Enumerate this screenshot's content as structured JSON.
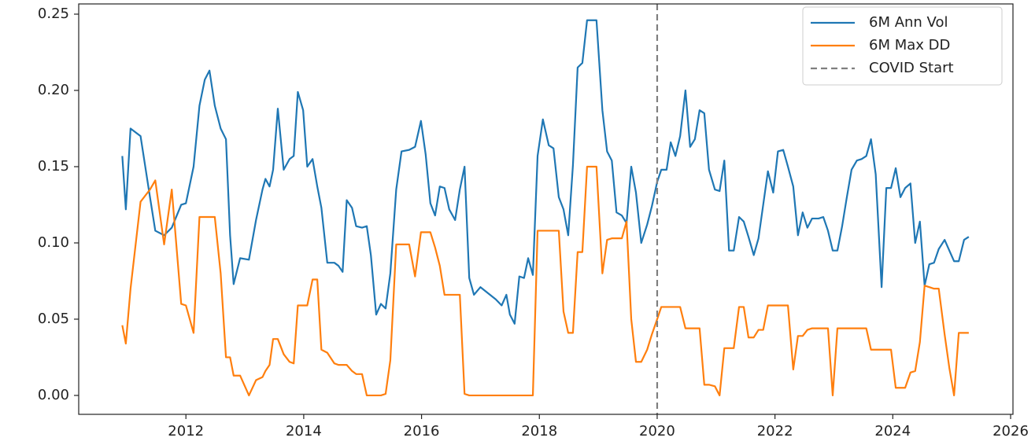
{
  "chart_data": {
    "type": "line",
    "x": [
      2010.92,
      2010.98,
      2011.06,
      2011.23,
      2011.39,
      2011.48,
      2011.63,
      2011.76,
      2011.92,
      2012.0,
      2012.13,
      2012.23,
      2012.32,
      2012.4,
      2012.49,
      2012.59,
      2012.68,
      2012.75,
      2012.81,
      2012.92,
      2013.07,
      2013.19,
      2013.3,
      2013.35,
      2013.42,
      2013.48,
      2013.56,
      2013.66,
      2013.76,
      2013.83,
      2013.9,
      2013.99,
      2014.06,
      2014.15,
      2014.23,
      2014.3,
      2014.4,
      2014.52,
      2014.59,
      2014.66,
      2014.73,
      2014.82,
      2014.89,
      2014.99,
      2015.07,
      2015.14,
      2015.23,
      2015.31,
      2015.39,
      2015.47,
      2015.57,
      2015.66,
      2015.79,
      2015.89,
      2015.99,
      2016.07,
      2016.15,
      2016.23,
      2016.31,
      2016.39,
      2016.47,
      2016.57,
      2016.65,
      2016.73,
      2016.81,
      2016.89,
      2017.0,
      2017.13,
      2017.26,
      2017.36,
      2017.44,
      2017.5,
      2017.58,
      2017.66,
      2017.74,
      2017.81,
      2017.89,
      2017.97,
      2018.06,
      2018.16,
      2018.24,
      2018.33,
      2018.41,
      2018.49,
      2018.57,
      2018.65,
      2018.73,
      2018.81,
      2018.89,
      2018.97,
      2019.07,
      2019.15,
      2019.23,
      2019.31,
      2019.4,
      2019.48,
      2019.56,
      2019.64,
      2019.73,
      2019.83,
      2019.91,
      2020.0,
      2020.07,
      2020.16,
      2020.23,
      2020.31,
      2020.39,
      2020.48,
      2020.56,
      2020.64,
      2020.72,
      2020.8,
      2020.88,
      2020.98,
      2021.06,
      2021.14,
      2021.22,
      2021.3,
      2021.39,
      2021.47,
      2021.55,
      2021.64,
      2021.72,
      2021.8,
      2021.88,
      2021.97,
      2022.05,
      2022.14,
      2022.22,
      2022.31,
      2022.39,
      2022.47,
      2022.55,
      2022.63,
      2022.74,
      2022.82,
      2022.9,
      2022.98,
      2023.06,
      2023.14,
      2023.22,
      2023.3,
      2023.39,
      2023.47,
      2023.55,
      2023.63,
      2023.71,
      2023.81,
      2023.89,
      2023.97,
      2024.05,
      2024.13,
      2024.21,
      2024.3,
      2024.38,
      2024.46,
      2024.54,
      2024.62,
      2024.7,
      2024.78,
      2024.88,
      2024.96,
      2025.04,
      2025.12,
      2025.21,
      2025.29
    ],
    "series": [
      {
        "name": "6M Ann Vol",
        "color": "#1f77b4",
        "values": [
          0.157,
          0.122,
          0.175,
          0.17,
          0.13,
          0.108,
          0.105,
          0.11,
          0.125,
          0.126,
          0.15,
          0.19,
          0.207,
          0.213,
          0.19,
          0.175,
          0.168,
          0.105,
          0.073,
          0.09,
          0.089,
          0.115,
          0.135,
          0.142,
          0.137,
          0.148,
          0.188,
          0.148,
          0.155,
          0.157,
          0.199,
          0.187,
          0.15,
          0.155,
          0.137,
          0.123,
          0.087,
          0.087,
          0.085,
          0.081,
          0.128,
          0.123,
          0.111,
          0.11,
          0.111,
          0.092,
          0.053,
          0.06,
          0.057,
          0.08,
          0.135,
          0.16,
          0.161,
          0.163,
          0.18,
          0.158,
          0.126,
          0.118,
          0.137,
          0.136,
          0.122,
          0.115,
          0.135,
          0.15,
          0.077,
          0.066,
          0.071,
          0.067,
          0.063,
          0.059,
          0.066,
          0.053,
          0.047,
          0.078,
          0.077,
          0.09,
          0.079,
          0.157,
          0.181,
          0.164,
          0.162,
          0.13,
          0.122,
          0.105,
          0.151,
          0.215,
          0.218,
          0.246,
          0.246,
          0.246,
          0.187,
          0.16,
          0.154,
          0.12,
          0.118,
          0.113,
          0.15,
          0.133,
          0.1,
          0.112,
          0.124,
          0.14,
          0.148,
          0.148,
          0.166,
          0.157,
          0.17,
          0.2,
          0.163,
          0.168,
          0.187,
          0.185,
          0.148,
          0.135,
          0.134,
          0.154,
          0.095,
          0.095,
          0.117,
          0.114,
          0.104,
          0.092,
          0.103,
          0.125,
          0.147,
          0.133,
          0.16,
          0.161,
          0.15,
          0.137,
          0.105,
          0.12,
          0.11,
          0.116,
          0.116,
          0.117,
          0.108,
          0.095,
          0.095,
          0.111,
          0.13,
          0.148,
          0.154,
          0.155,
          0.157,
          0.168,
          0.145,
          0.071,
          0.136,
          0.136,
          0.149,
          0.13,
          0.136,
          0.139,
          0.1,
          0.114,
          0.072,
          0.086,
          0.087,
          0.096,
          0.102,
          0.095,
          0.088,
          0.088,
          0.102,
          0.104
        ]
      },
      {
        "name": "6M Max DD",
        "color": "#ff7f0e",
        "values": [
          0.046,
          0.034,
          0.07,
          0.127,
          0.135,
          0.141,
          0.099,
          0.135,
          0.06,
          0.059,
          0.041,
          0.117,
          0.117,
          0.117,
          0.117,
          0.08,
          0.025,
          0.025,
          0.013,
          0.013,
          0.0,
          0.01,
          0.012,
          0.016,
          0.02,
          0.037,
          0.037,
          0.027,
          0.022,
          0.021,
          0.059,
          0.059,
          0.059,
          0.076,
          0.076,
          0.03,
          0.028,
          0.021,
          0.02,
          0.02,
          0.02,
          0.016,
          0.014,
          0.014,
          0.0,
          0.0,
          0.0,
          0.0,
          0.001,
          0.023,
          0.099,
          0.099,
          0.099,
          0.078,
          0.107,
          0.107,
          0.107,
          0.097,
          0.085,
          0.066,
          0.066,
          0.066,
          0.066,
          0.001,
          0.0,
          0.0,
          0.0,
          0.0,
          0.0,
          0.0,
          0.0,
          0.0,
          0.0,
          0.0,
          0.0,
          0.0,
          0.0,
          0.108,
          0.108,
          0.108,
          0.108,
          0.108,
          0.055,
          0.041,
          0.041,
          0.094,
          0.094,
          0.15,
          0.15,
          0.15,
          0.08,
          0.102,
          0.103,
          0.103,
          0.103,
          0.114,
          0.05,
          0.022,
          0.022,
          0.03,
          0.04,
          0.05,
          0.058,
          0.058,
          0.058,
          0.058,
          0.058,
          0.044,
          0.044,
          0.044,
          0.044,
          0.007,
          0.007,
          0.006,
          0.0,
          0.031,
          0.031,
          0.031,
          0.058,
          0.058,
          0.038,
          0.038,
          0.043,
          0.043,
          0.059,
          0.059,
          0.059,
          0.059,
          0.059,
          0.017,
          0.039,
          0.039,
          0.043,
          0.044,
          0.044,
          0.044,
          0.044,
          0.0,
          0.044,
          0.044,
          0.044,
          0.044,
          0.044,
          0.044,
          0.044,
          0.03,
          0.03,
          0.03,
          0.03,
          0.03,
          0.005,
          0.005,
          0.005,
          0.015,
          0.016,
          0.035,
          0.072,
          0.071,
          0.07,
          0.07,
          0.04,
          0.018,
          0.0,
          0.041,
          0.041,
          0.041
        ]
      }
    ],
    "vlines": [
      {
        "x": 2020,
        "name": "COVID Start",
        "color": "#7f7f7f"
      }
    ],
    "xlim": [
      2010.18,
      2026.04
    ],
    "xticks": [
      2012,
      2014,
      2016,
      2018,
      2020,
      2022,
      2024,
      2026
    ],
    "ylim": [
      -0.0124,
      0.2567
    ],
    "yticks": [
      {
        "value": 0,
        "label": "0.00"
      },
      0.05,
      {
        "value": 0.1,
        "label": "0.10"
      },
      0.15,
      {
        "value": 0.2,
        "label": "0.20"
      },
      0.25
    ],
    "grid": false,
    "legend": "upper right"
  }
}
